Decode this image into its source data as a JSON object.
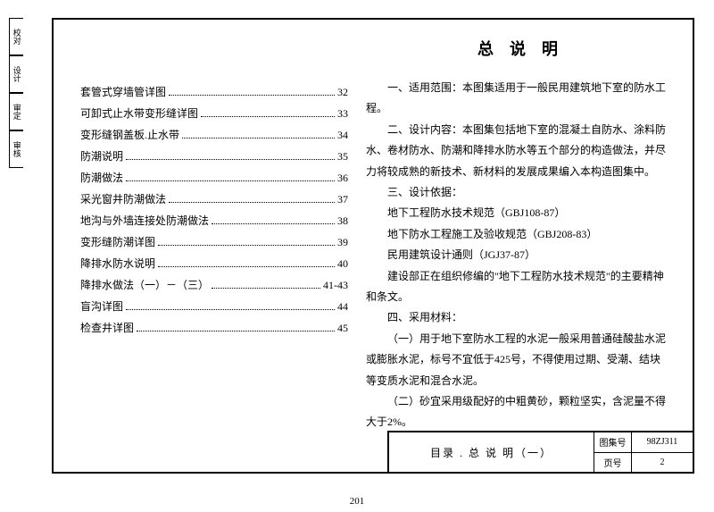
{
  "sideTabs": [
    "校对",
    "设计",
    "审定",
    "审核"
  ],
  "toc": [
    {
      "label": "套管式穿墙管详图",
      "page": "32"
    },
    {
      "label": "可卸式止水带变形缝详图",
      "page": "33"
    },
    {
      "label": "变形缝钢盖板.止水带",
      "page": "34"
    },
    {
      "label": "防潮说明",
      "page": "35"
    },
    {
      "label": "防潮做法",
      "page": "36"
    },
    {
      "label": "采光窗井防潮做法",
      "page": "37"
    },
    {
      "label": "地沟与外墙连接处防潮做法",
      "page": "38"
    },
    {
      "label": "变形缝防潮详图",
      "page": "39"
    },
    {
      "label": "降排水防水说明",
      "page": "40"
    },
    {
      "label": "降排水做法（一）－（三）",
      "page": "41-43"
    },
    {
      "label": "盲沟详图",
      "page": "44"
    },
    {
      "label": "检查井详图",
      "page": "45"
    }
  ],
  "rightTitle": "总说明",
  "paras": [
    "一、适用范围：本图集适用于一般民用建筑地下室的防水工程。",
    "二、设计内容：本图集包括地下室的混凝土自防水、涂料防水、卷材防水、防潮和降排水防水等五个部分的构造做法，并尽力将较成熟的新技术、新材料的发展成果编入本构造图集中。",
    "三、设计依据：",
    "地下工程防水技术规范（GBJ108-87）",
    "地下防水工程施工及验收规范（GBJ208-83）",
    "民用建筑设计通则（JGJ37-87）",
    "建设部正在组织修编的\"地下工程防水技术规范\"的主要精神和条文。",
    "四、采用材料：",
    "（一）用于地下室防水工程的水泥一般采用普通硅酸盐水泥或膨胀水泥，标号不宜低于425号，不得使用过期、受潮、结块等变质水泥和混合水泥。",
    "（二）砂宜采用级配好的中粗黄砂，颗粒坚实，含泥量不得大于2%。"
  ],
  "titleBlock": {
    "title": "目录 . 总 说 明（一）",
    "setLabel": "图集号",
    "setVal": "98ZJ311",
    "pageLabel": "页号",
    "pageVal": "2"
  },
  "pageNumber": "201"
}
